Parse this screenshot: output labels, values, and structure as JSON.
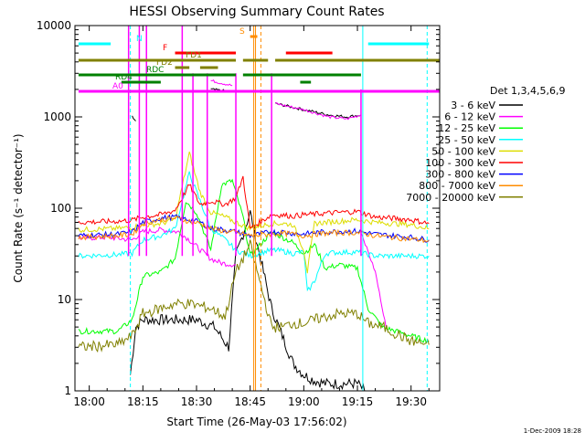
{
  "chart_data": {
    "type": "line",
    "title": "HESSI Observing Summary Count Rates",
    "xlabel": "Start Time (26-May-03 17:56:02)",
    "ylabel": "Count Rate (s⁻¹ detector⁻¹)",
    "ylog": true,
    "ylim": [
      1,
      10000
    ],
    "xlim_minutes_after_start": [
      -4,
      98
    ],
    "x_ticks": [
      {
        "label": "18:00",
        "m": 0
      },
      {
        "label": "18:15",
        "m": 15
      },
      {
        "label": "18:30",
        "m": 30
      },
      {
        "label": "18:45",
        "m": 45
      },
      {
        "label": "19:00",
        "m": 60
      },
      {
        "label": "19:15",
        "m": 75
      },
      {
        "label": "19:30",
        "m": 90
      }
    ],
    "y_ticks": [
      {
        "label": "1",
        "v": 1
      },
      {
        "label": "10",
        "v": 10
      },
      {
        "label": "100",
        "v": 100
      },
      {
        "label": "1000",
        "v": 1000
      },
      {
        "label": "10000",
        "v": 10000
      }
    ],
    "legend_title": "Det 1,3,4,5,6,9",
    "legend_position": "right",
    "footer_date": "1-Dec-2009 18:28",
    "series": [
      {
        "name": "3 - 6 keV",
        "color": "#000000",
        "points": [
          [
            11.5,
            1.5
          ],
          [
            13,
            5
          ],
          [
            15,
            6
          ],
          [
            20,
            6
          ],
          [
            25,
            6
          ],
          [
            30,
            6
          ],
          [
            35,
            5
          ],
          [
            39,
            3
          ],
          [
            41,
            30
          ],
          [
            45,
            90
          ],
          [
            51,
            8
          ],
          [
            54,
            4
          ],
          [
            57,
            2
          ],
          [
            60,
            1.5
          ],
          [
            63,
            1.3
          ],
          [
            66,
            1.2
          ],
          [
            70,
            1.2
          ],
          [
            75,
            1.2
          ],
          [
            77,
            1
          ]
        ],
        "segments": [
          [
            [
              12,
              1000
            ],
            [
              13,
              900
            ]
          ],
          [
            [
              34,
              2000
            ],
            [
              39,
              1900
            ]
          ],
          [
            [
              52,
              1400
            ],
            [
              60,
              1200
            ],
            [
              67,
              1050
            ],
            [
              72,
              1000
            ],
            [
              76,
              1050
            ]
          ]
        ]
      },
      {
        "name": "6 - 12 keV",
        "color": "#ff00ff",
        "points": [
          [
            -3,
            47
          ],
          [
            5,
            48
          ],
          [
            12,
            45
          ],
          [
            15,
            55
          ],
          [
            20,
            58
          ],
          [
            25,
            55
          ],
          [
            28,
            45
          ],
          [
            31,
            35
          ],
          [
            34,
            28
          ],
          [
            37,
            25
          ],
          [
            41,
            24
          ]
        ],
        "segments": [
          [
            [
              34,
              2500
            ],
            [
              40,
              2200
            ]
          ],
          [
            [
              52,
              1400
            ],
            [
              60,
              1200
            ],
            [
              67,
              1000
            ],
            [
              72,
              950
            ],
            [
              76,
              1050
            ]
          ],
          [
            [
              76,
              55
            ],
            [
              80,
              20
            ],
            [
              83,
              5
            ]
          ]
        ]
      },
      {
        "name": "12 - 25 keV",
        "color": "#00ff00",
        "points": [
          [
            -3,
            4.5
          ],
          [
            8,
            4.5
          ],
          [
            12,
            6
          ],
          [
            15,
            18
          ],
          [
            20,
            20
          ],
          [
            24,
            28
          ],
          [
            27,
            120
          ],
          [
            30,
            90
          ],
          [
            34,
            35
          ],
          [
            37,
            180
          ],
          [
            40,
            200
          ],
          [
            43,
            80
          ],
          [
            45,
            30
          ],
          [
            51,
            55
          ],
          [
            54,
            48
          ],
          [
            57,
            42
          ],
          [
            60,
            32
          ],
          [
            63,
            40
          ],
          [
            66,
            22
          ],
          [
            70,
            24
          ],
          [
            75,
            22
          ],
          [
            78,
            8
          ],
          [
            82,
            5
          ],
          [
            90,
            4
          ],
          [
            95,
            3.5
          ]
        ]
      },
      {
        "name": "25 - 50 keV",
        "color": "#00ffff",
        "points": [
          [
            -3,
            30
          ],
          [
            8,
            31
          ],
          [
            12,
            32
          ],
          [
            15,
            45
          ],
          [
            20,
            50
          ],
          [
            24,
            60
          ],
          [
            28,
            240
          ],
          [
            31,
            120
          ],
          [
            34,
            60
          ],
          [
            38,
            45
          ],
          [
            41,
            35
          ],
          [
            45,
            30
          ],
          [
            51,
            35
          ],
          [
            54,
            34
          ],
          [
            57,
            32
          ],
          [
            60,
            33
          ],
          [
            61,
            12
          ],
          [
            63,
            16
          ],
          [
            66,
            32
          ],
          [
            70,
            33
          ],
          [
            75,
            33
          ],
          [
            80,
            30
          ],
          [
            90,
            30
          ],
          [
            95,
            30
          ]
        ]
      },
      {
        "name": "50 - 100 keV",
        "color": "#dddd00",
        "points": [
          [
            -3,
            58
          ],
          [
            8,
            60
          ],
          [
            12,
            62
          ],
          [
            15,
            65
          ],
          [
            20,
            68
          ],
          [
            24,
            75
          ],
          [
            28,
            400
          ],
          [
            31,
            150
          ],
          [
            34,
            90
          ],
          [
            38,
            80
          ],
          [
            41,
            70
          ],
          [
            45,
            60
          ],
          [
            51,
            68
          ],
          [
            54,
            68
          ],
          [
            57,
            66
          ],
          [
            60,
            35
          ],
          [
            61,
            20
          ],
          [
            63,
            68
          ],
          [
            66,
            70
          ],
          [
            70,
            72
          ],
          [
            75,
            75
          ],
          [
            80,
            70
          ],
          [
            90,
            66
          ],
          [
            95,
            60
          ]
        ]
      },
      {
        "name": "100 - 300 keV",
        "color": "#ff0000",
        "points": [
          [
            -3,
            70
          ],
          [
            8,
            72
          ],
          [
            12,
            74
          ],
          [
            15,
            80
          ],
          [
            20,
            85
          ],
          [
            24,
            95
          ],
          [
            28,
            180
          ],
          [
            31,
            110
          ],
          [
            34,
            120
          ],
          [
            38,
            110
          ],
          [
            41,
            130
          ],
          [
            43,
            220
          ],
          [
            45,
            60
          ],
          [
            51,
            85
          ],
          [
            54,
            84
          ],
          [
            57,
            82
          ],
          [
            60,
            85
          ],
          [
            63,
            86
          ],
          [
            66,
            88
          ],
          [
            70,
            90
          ],
          [
            75,
            92
          ],
          [
            80,
            80
          ],
          [
            90,
            75
          ],
          [
            95,
            68
          ]
        ]
      },
      {
        "name": "300 - 800 keV",
        "color": "#0000ff",
        "points": [
          [
            -3,
            50
          ],
          [
            8,
            52
          ],
          [
            12,
            55
          ],
          [
            15,
            70
          ],
          [
            20,
            78
          ],
          [
            24,
            80
          ],
          [
            28,
            75
          ],
          [
            31,
            70
          ],
          [
            34,
            60
          ],
          [
            38,
            58
          ],
          [
            41,
            55
          ],
          [
            45,
            50
          ],
          [
            51,
            55
          ],
          [
            54,
            55
          ],
          [
            57,
            53
          ],
          [
            60,
            52
          ],
          [
            63,
            54
          ],
          [
            66,
            55
          ],
          [
            70,
            56
          ],
          [
            75,
            56
          ],
          [
            80,
            52
          ],
          [
            90,
            48
          ],
          [
            95,
            45
          ]
        ]
      },
      {
        "name": "800 - 7000 keV",
        "color": "#ff8c00",
        "points": [
          [
            -3,
            48
          ],
          [
            8,
            50
          ],
          [
            12,
            52
          ],
          [
            15,
            68
          ],
          [
            20,
            75
          ],
          [
            24,
            78
          ],
          [
            28,
            72
          ],
          [
            31,
            68
          ],
          [
            34,
            60
          ],
          [
            38,
            56
          ],
          [
            41,
            54
          ],
          [
            45,
            50
          ],
          [
            51,
            52
          ],
          [
            54,
            53
          ],
          [
            57,
            52
          ],
          [
            60,
            50
          ],
          [
            63,
            52
          ],
          [
            66,
            53
          ],
          [
            70,
            54
          ],
          [
            75,
            54
          ],
          [
            80,
            50
          ],
          [
            90,
            46
          ],
          [
            95,
            44
          ]
        ]
      },
      {
        "name": "7000 - 20000 keV",
        "color": "#808000",
        "points": [
          [
            -3,
            3
          ],
          [
            8,
            3.2
          ],
          [
            12,
            4
          ],
          [
            15,
            7
          ],
          [
            20,
            8
          ],
          [
            24,
            9
          ],
          [
            28,
            9
          ],
          [
            31,
            8.5
          ],
          [
            34,
            8
          ],
          [
            38,
            6.5
          ],
          [
            41,
            20
          ],
          [
            45,
            40
          ],
          [
            51,
            5
          ],
          [
            54,
            5
          ],
          [
            57,
            5.5
          ],
          [
            60,
            5.5
          ],
          [
            63,
            6
          ],
          [
            66,
            6.5
          ],
          [
            70,
            7
          ],
          [
            75,
            7
          ],
          [
            78,
            5.5
          ],
          [
            82,
            5
          ],
          [
            90,
            3.5
          ],
          [
            95,
            3.2
          ]
        ]
      }
    ],
    "state_bars": [
      {
        "label": "N",
        "color": "#00ffff",
        "segments": [
          [
            -3,
            6
          ],
          [
            78,
            95
          ]
        ]
      },
      {
        "label": "S",
        "color": "#ff8c00",
        "segments": [
          [
            45,
            47
          ]
        ]
      },
      {
        "label": "F",
        "color": "#ff0000",
        "segments": [
          [
            24,
            41
          ],
          [
            55,
            68
          ]
        ]
      },
      {
        "label": "FD1",
        "color": "#808000",
        "segments": [
          [
            -3,
            41
          ],
          [
            43,
            50
          ],
          [
            52,
            98
          ]
        ]
      },
      {
        "label": "FD2",
        "color": "#808000",
        "segments": [
          [
            24,
            28
          ],
          [
            31,
            36
          ]
        ]
      },
      {
        "label": "RDC",
        "color": "#008000",
        "segments": [
          [
            -3,
            41
          ],
          [
            43,
            76
          ]
        ]
      },
      {
        "label": "RD4",
        "color": "#008000",
        "segments": [
          [
            9,
            20
          ],
          [
            59,
            62
          ]
        ]
      },
      {
        "label": "A0",
        "color": "#ff00ff",
        "segments": [
          [
            -3,
            98
          ]
        ]
      }
    ],
    "spikes": [
      {
        "color": "#ff00ff",
        "m": 11,
        "top": 10000
      },
      {
        "color": "#ff00ff",
        "m": 14,
        "top": 10000
      },
      {
        "color": "#ff00ff",
        "m": 16,
        "top": 10000
      },
      {
        "color": "#ff00ff",
        "m": 26,
        "top": 10000
      },
      {
        "color": "#ff00ff",
        "m": 29,
        "top": 3000
      },
      {
        "color": "#ff00ff",
        "m": 33,
        "top": 3000
      },
      {
        "color": "#ff00ff",
        "m": 41,
        "top": 3000
      },
      {
        "color": "#ff00ff",
        "m": 51,
        "top": 3000
      },
      {
        "color": "#ff00ff",
        "m": 76,
        "top": 2000
      }
    ],
    "vlines": [
      {
        "m": 46,
        "color": "#ff8c00",
        "style": "solid"
      },
      {
        "m": 46.5,
        "color": "#ff8c00",
        "style": "solid"
      },
      {
        "m": 48,
        "color": "#ff8c00",
        "style": "dashed"
      },
      {
        "m": 11.5,
        "color": "#00ffff",
        "style": "dashed"
      },
      {
        "m": 76.5,
        "color": "#00ffff",
        "style": "solid"
      },
      {
        "m": 94.5,
        "color": "#00ffff",
        "style": "dashed"
      }
    ]
  }
}
